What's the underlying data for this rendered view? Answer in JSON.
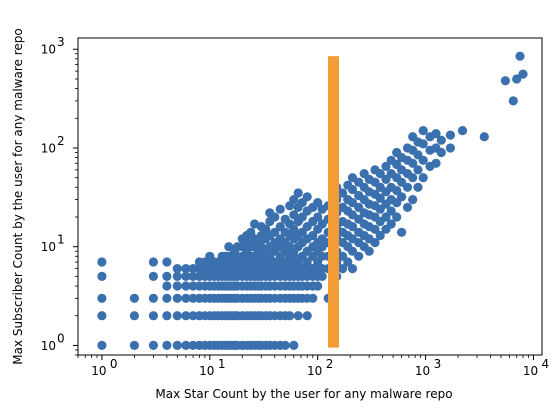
{
  "chart_data": {
    "type": "scatter",
    "xlabel": "Max Star Count by the user for any malware repo",
    "ylabel": "Max Subscriber Count by the user for any malware repo",
    "x_scale": "log",
    "y_scale": "log",
    "xlim": [
      0.6,
      12000
    ],
    "ylim": [
      0.8,
      1300
    ],
    "x_ticks": [
      1,
      10,
      100,
      1000,
      10000
    ],
    "y_ticks": [
      1,
      10,
      100,
      1000
    ],
    "x_tick_labels": [
      {
        "base": "10",
        "exp": "0"
      },
      {
        "base": "10",
        "exp": "1"
      },
      {
        "base": "10",
        "exp": "2"
      },
      {
        "base": "10",
        "exp": "3"
      },
      {
        "base": "10",
        "exp": "4"
      }
    ],
    "y_tick_labels": [
      {
        "base": "10",
        "exp": "0"
      },
      {
        "base": "10",
        "exp": "1"
      },
      {
        "base": "10",
        "exp": "2"
      },
      {
        "base": "10",
        "exp": "3"
      }
    ],
    "grid": false,
    "legend": "none",
    "point_color": "#3a70ad",
    "annotation_bar": {
      "x": 140,
      "y_range": [
        0.95,
        850
      ],
      "color": "#f39b35"
    },
    "points": [
      [
        1,
        1
      ],
      [
        1,
        2
      ],
      [
        1,
        3
      ],
      [
        1,
        5
      ],
      [
        1,
        7
      ],
      [
        2,
        1
      ],
      [
        2,
        2
      ],
      [
        2,
        3
      ],
      [
        3,
        1
      ],
      [
        3,
        2
      ],
      [
        3,
        3
      ],
      [
        3,
        5
      ],
      [
        3,
        7
      ],
      [
        4,
        1
      ],
      [
        4,
        2
      ],
      [
        4,
        3
      ],
      [
        4,
        4
      ],
      [
        4,
        5
      ],
      [
        4,
        7
      ],
      [
        5,
        1
      ],
      [
        5,
        2
      ],
      [
        5,
        3
      ],
      [
        5,
        4
      ],
      [
        5,
        5
      ],
      [
        5,
        6
      ],
      [
        6,
        1
      ],
      [
        6,
        2
      ],
      [
        6,
        3
      ],
      [
        6,
        4
      ],
      [
        6,
        5
      ],
      [
        6,
        6
      ],
      [
        7,
        1
      ],
      [
        7,
        2
      ],
      [
        7,
        3
      ],
      [
        7,
        4
      ],
      [
        7,
        5
      ],
      [
        7,
        6
      ],
      [
        8,
        1
      ],
      [
        8,
        2
      ],
      [
        8,
        3
      ],
      [
        8,
        4
      ],
      [
        8,
        5
      ],
      [
        8,
        6
      ],
      [
        8,
        7
      ],
      [
        9,
        1
      ],
      [
        9,
        2
      ],
      [
        9,
        3
      ],
      [
        9,
        4
      ],
      [
        9,
        5
      ],
      [
        9,
        6
      ],
      [
        9,
        7
      ],
      [
        10,
        1
      ],
      [
        10,
        2
      ],
      [
        10,
        3
      ],
      [
        10,
        4
      ],
      [
        10,
        5
      ],
      [
        10,
        6
      ],
      [
        10,
        7
      ],
      [
        10,
        8
      ],
      [
        11,
        1
      ],
      [
        11,
        2
      ],
      [
        11,
        3
      ],
      [
        11,
        4
      ],
      [
        11,
        5
      ],
      [
        11,
        6
      ],
      [
        11,
        7
      ],
      [
        12,
        1
      ],
      [
        12,
        2
      ],
      [
        12,
        3
      ],
      [
        12,
        4
      ],
      [
        12,
        5
      ],
      [
        12,
        6
      ],
      [
        12,
        7
      ],
      [
        13,
        1
      ],
      [
        13,
        2
      ],
      [
        13,
        3
      ],
      [
        13,
        4
      ],
      [
        13,
        5
      ],
      [
        13,
        6
      ],
      [
        13,
        8
      ],
      [
        14,
        1
      ],
      [
        14,
        2
      ],
      [
        14,
        3
      ],
      [
        14,
        4
      ],
      [
        14,
        5
      ],
      [
        14,
        6
      ],
      [
        14,
        7
      ],
      [
        14,
        8
      ],
      [
        15,
        1
      ],
      [
        15,
        2
      ],
      [
        15,
        3
      ],
      [
        15,
        4
      ],
      [
        15,
        5
      ],
      [
        15,
        6
      ],
      [
        15,
        8
      ],
      [
        15,
        10
      ],
      [
        16,
        1
      ],
      [
        16,
        2
      ],
      [
        16,
        3
      ],
      [
        16,
        4
      ],
      [
        16,
        5
      ],
      [
        16,
        6
      ],
      [
        16,
        7
      ],
      [
        17,
        1
      ],
      [
        17,
        2
      ],
      [
        17,
        3
      ],
      [
        17,
        4
      ],
      [
        17,
        5
      ],
      [
        17,
        6
      ],
      [
        17,
        8
      ],
      [
        17,
        9
      ],
      [
        18,
        1
      ],
      [
        18,
        2
      ],
      [
        18,
        3
      ],
      [
        18,
        4
      ],
      [
        18,
        5
      ],
      [
        18,
        6
      ],
      [
        18,
        7
      ],
      [
        18,
        8
      ],
      [
        18,
        10
      ],
      [
        20,
        1
      ],
      [
        20,
        2
      ],
      [
        20,
        3
      ],
      [
        20,
        4
      ],
      [
        20,
        5
      ],
      [
        20,
        6
      ],
      [
        20,
        7
      ],
      [
        20,
        8
      ],
      [
        20,
        10
      ],
      [
        20,
        12
      ],
      [
        22,
        1
      ],
      [
        22,
        2
      ],
      [
        22,
        3
      ],
      [
        22,
        4
      ],
      [
        22,
        5
      ],
      [
        22,
        6
      ],
      [
        22,
        7
      ],
      [
        22,
        9
      ],
      [
        22,
        11
      ],
      [
        22,
        13
      ],
      [
        24,
        1
      ],
      [
        24,
        2
      ],
      [
        24,
        3
      ],
      [
        24,
        4
      ],
      [
        24,
        5
      ],
      [
        24,
        6
      ],
      [
        24,
        7
      ],
      [
        24,
        8
      ],
      [
        24,
        10
      ],
      [
        24,
        14
      ],
      [
        26,
        1
      ],
      [
        26,
        2
      ],
      [
        26,
        3
      ],
      [
        26,
        4
      ],
      [
        26,
        5
      ],
      [
        26,
        6
      ],
      [
        26,
        8
      ],
      [
        26,
        10
      ],
      [
        26,
        12
      ],
      [
        26,
        17
      ],
      [
        28,
        1
      ],
      [
        28,
        2
      ],
      [
        28,
        3
      ],
      [
        28,
        4
      ],
      [
        28,
        5
      ],
      [
        28,
        6
      ],
      [
        28,
        7
      ],
      [
        28,
        9
      ],
      [
        28,
        11
      ],
      [
        30,
        1
      ],
      [
        30,
        2
      ],
      [
        30,
        3
      ],
      [
        30,
        4
      ],
      [
        30,
        5
      ],
      [
        30,
        6
      ],
      [
        30,
        7
      ],
      [
        30,
        8
      ],
      [
        30,
        10
      ],
      [
        30,
        13
      ],
      [
        30,
        16
      ],
      [
        33,
        1
      ],
      [
        33,
        2
      ],
      [
        33,
        3
      ],
      [
        33,
        4
      ],
      [
        33,
        5
      ],
      [
        33,
        6
      ],
      [
        33,
        7
      ],
      [
        33,
        9
      ],
      [
        33,
        12
      ],
      [
        33,
        15
      ],
      [
        36,
        1
      ],
      [
        36,
        2
      ],
      [
        36,
        3
      ],
      [
        36,
        4
      ],
      [
        36,
        5
      ],
      [
        36,
        6
      ],
      [
        36,
        7
      ],
      [
        36,
        8
      ],
      [
        36,
        10
      ],
      [
        36,
        13
      ],
      [
        36,
        18
      ],
      [
        36,
        22
      ],
      [
        40,
        1
      ],
      [
        40,
        2
      ],
      [
        40,
        3
      ],
      [
        40,
        4
      ],
      [
        40,
        5
      ],
      [
        40,
        6
      ],
      [
        40,
        7
      ],
      [
        40,
        9
      ],
      [
        40,
        11
      ],
      [
        40,
        14
      ],
      [
        40,
        20
      ],
      [
        45,
        1
      ],
      [
        45,
        2
      ],
      [
        45,
        3
      ],
      [
        45,
        4
      ],
      [
        45,
        5
      ],
      [
        45,
        6
      ],
      [
        45,
        7
      ],
      [
        45,
        8
      ],
      [
        45,
        10
      ],
      [
        45,
        12
      ],
      [
        45,
        16
      ],
      [
        45,
        24
      ],
      [
        50,
        1
      ],
      [
        50,
        2
      ],
      [
        50,
        3
      ],
      [
        50,
        4
      ],
      [
        50,
        5
      ],
      [
        50,
        6
      ],
      [
        50,
        7
      ],
      [
        50,
        9
      ],
      [
        50,
        11
      ],
      [
        50,
        14
      ],
      [
        50,
        19
      ],
      [
        55,
        2
      ],
      [
        55,
        3
      ],
      [
        55,
        4
      ],
      [
        55,
        5
      ],
      [
        55,
        6
      ],
      [
        55,
        7
      ],
      [
        55,
        8
      ],
      [
        55,
        10
      ],
      [
        55,
        13
      ],
      [
        55,
        17
      ],
      [
        55,
        26
      ],
      [
        60,
        1
      ],
      [
        60,
        3
      ],
      [
        60,
        4
      ],
      [
        60,
        5
      ],
      [
        60,
        6
      ],
      [
        60,
        8
      ],
      [
        60,
        9
      ],
      [
        60,
        12
      ],
      [
        60,
        15
      ],
      [
        60,
        21
      ],
      [
        60,
        30
      ],
      [
        66,
        2
      ],
      [
        66,
        3
      ],
      [
        66,
        4
      ],
      [
        66,
        5
      ],
      [
        66,
        6
      ],
      [
        66,
        7
      ],
      [
        66,
        10
      ],
      [
        66,
        13
      ],
      [
        66,
        18
      ],
      [
        66,
        25
      ],
      [
        66,
        35
      ],
      [
        72,
        3
      ],
      [
        72,
        4
      ],
      [
        72,
        5
      ],
      [
        72,
        6
      ],
      [
        72,
        8
      ],
      [
        72,
        11
      ],
      [
        72,
        14
      ],
      [
        72,
        20
      ],
      [
        72,
        28
      ],
      [
        80,
        2
      ],
      [
        80,
        3
      ],
      [
        80,
        4
      ],
      [
        80,
        5
      ],
      [
        80,
        6
      ],
      [
        80,
        7
      ],
      [
        80,
        9
      ],
      [
        80,
        12
      ],
      [
        80,
        16
      ],
      [
        80,
        23
      ],
      [
        80,
        32
      ],
      [
        90,
        3
      ],
      [
        90,
        4
      ],
      [
        90,
        5
      ],
      [
        90,
        6
      ],
      [
        90,
        8
      ],
      [
        90,
        10
      ],
      [
        90,
        13
      ],
      [
        90,
        18
      ],
      [
        90,
        25
      ],
      [
        100,
        4
      ],
      [
        100,
        5
      ],
      [
        100,
        6
      ],
      [
        100,
        7
      ],
      [
        100,
        9
      ],
      [
        100,
        11
      ],
      [
        100,
        15
      ],
      [
        100,
        20
      ],
      [
        100,
        28
      ],
      [
        110,
        5
      ],
      [
        110,
        6
      ],
      [
        110,
        8
      ],
      [
        110,
        10
      ],
      [
        110,
        12
      ],
      [
        110,
        17
      ],
      [
        110,
        24
      ],
      [
        125,
        3
      ],
      [
        125,
        6
      ],
      [
        125,
        8
      ],
      [
        125,
        11
      ],
      [
        125,
        14
      ],
      [
        125,
        19
      ],
      [
        125,
        26
      ],
      [
        150,
        5
      ],
      [
        150,
        7
      ],
      [
        150,
        9
      ],
      [
        150,
        12
      ],
      [
        150,
        16
      ],
      [
        150,
        22
      ],
      [
        150,
        30
      ],
      [
        150,
        40
      ],
      [
        170,
        6
      ],
      [
        170,
        8
      ],
      [
        170,
        11
      ],
      [
        170,
        14
      ],
      [
        170,
        18
      ],
      [
        170,
        25
      ],
      [
        170,
        35
      ],
      [
        190,
        7
      ],
      [
        190,
        10
      ],
      [
        190,
        13
      ],
      [
        190,
        17
      ],
      [
        190,
        23
      ],
      [
        190,
        30
      ],
      [
        190,
        42
      ],
      [
        210,
        6
      ],
      [
        210,
        9
      ],
      [
        210,
        12
      ],
      [
        210,
        16
      ],
      [
        210,
        21
      ],
      [
        210,
        28
      ],
      [
        210,
        38
      ],
      [
        210,
        50
      ],
      [
        240,
        8
      ],
      [
        240,
        11
      ],
      [
        240,
        14
      ],
      [
        240,
        19
      ],
      [
        240,
        25
      ],
      [
        240,
        33
      ],
      [
        240,
        45
      ],
      [
        270,
        10
      ],
      [
        270,
        13
      ],
      [
        270,
        17
      ],
      [
        270,
        22
      ],
      [
        270,
        30
      ],
      [
        270,
        40
      ],
      [
        270,
        55
      ],
      [
        300,
        9
      ],
      [
        300,
        12
      ],
      [
        300,
        16
      ],
      [
        300,
        21
      ],
      [
        300,
        27
      ],
      [
        300,
        36
      ],
      [
        300,
        48
      ],
      [
        340,
        11
      ],
      [
        340,
        15
      ],
      [
        340,
        20
      ],
      [
        340,
        26
      ],
      [
        340,
        34
      ],
      [
        340,
        45
      ],
      [
        340,
        60
      ],
      [
        380,
        13
      ],
      [
        380,
        18
      ],
      [
        380,
        24
      ],
      [
        380,
        31
      ],
      [
        380,
        40
      ],
      [
        380,
        55
      ],
      [
        430,
        15
      ],
      [
        430,
        20
      ],
      [
        430,
        27
      ],
      [
        430,
        36
      ],
      [
        430,
        48
      ],
      [
        430,
        65
      ],
      [
        480,
        17
      ],
      [
        480,
        23
      ],
      [
        480,
        30
      ],
      [
        480,
        40
      ],
      [
        480,
        55
      ],
      [
        480,
        75
      ],
      [
        540,
        20
      ],
      [
        540,
        28
      ],
      [
        540,
        37
      ],
      [
        540,
        50
      ],
      [
        540,
        68
      ],
      [
        540,
        90
      ],
      [
        600,
        14
      ],
      [
        600,
        32
      ],
      [
        600,
        45
      ],
      [
        600,
        60
      ],
      [
        600,
        80
      ],
      [
        680,
        25
      ],
      [
        680,
        40
      ],
      [
        680,
        55
      ],
      [
        680,
        75
      ],
      [
        680,
        100
      ],
      [
        760,
        30
      ],
      [
        760,
        50
      ],
      [
        760,
        70
      ],
      [
        760,
        95
      ],
      [
        760,
        130
      ],
      [
        850,
        40
      ],
      [
        850,
        60
      ],
      [
        850,
        85
      ],
      [
        850,
        115
      ],
      [
        950,
        50
      ],
      [
        950,
        75
      ],
      [
        950,
        110
      ],
      [
        950,
        150
      ],
      [
        1100,
        65
      ],
      [
        1100,
        95
      ],
      [
        1100,
        130
      ],
      [
        1250,
        70
      ],
      [
        1250,
        100
      ],
      [
        1250,
        140
      ],
      [
        1400,
        90
      ],
      [
        1400,
        120
      ],
      [
        1700,
        100
      ],
      [
        1700,
        135
      ],
      [
        2200,
        150
      ],
      [
        3500,
        130
      ],
      [
        5500,
        480
      ],
      [
        6500,
        300
      ],
      [
        7000,
        500
      ],
      [
        7500,
        850
      ],
      [
        8000,
        560
      ]
    ]
  }
}
